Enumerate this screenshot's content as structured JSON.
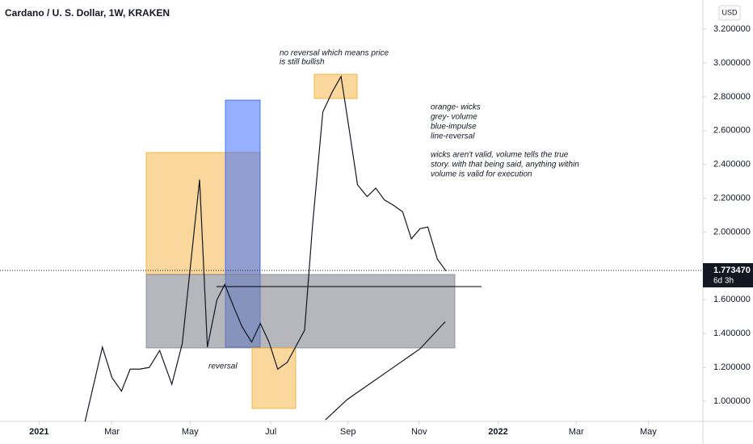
{
  "chart_data": {
    "type": "line",
    "title": "Cardano / U. S. Dollar, 1W, KRAKEN",
    "currency": "USD",
    "xlim": [
      -4.5,
      76.5
    ],
    "xticks": [
      {
        "value": 0,
        "label": "2021"
      },
      {
        "value": 8.4,
        "label": "Mar"
      },
      {
        "value": 17.4,
        "label": "May"
      },
      {
        "value": 26.7,
        "label": "Jul"
      },
      {
        "value": 35.6,
        "label": "Sep"
      },
      {
        "value": 43.8,
        "label": "Nov"
      },
      {
        "value": 52.9,
        "label": "2022"
      },
      {
        "value": 61.9,
        "label": "Mar"
      },
      {
        "value": 70.2,
        "label": "May"
      }
    ],
    "ylim": [
      0.881,
      3.372
    ],
    "yticks": [
      {
        "value": 1.0,
        "label": "1.000000"
      },
      {
        "value": 1.2,
        "label": "1.200000"
      },
      {
        "value": 1.4,
        "label": "1.400000"
      },
      {
        "value": 1.6,
        "label": "1.600000"
      },
      {
        "value": 2.0,
        "label": "2.000000"
      },
      {
        "value": 2.2,
        "label": "2.200000"
      },
      {
        "value": 2.4,
        "label": "2.400000"
      },
      {
        "value": 2.6,
        "label": "2.600000"
      },
      {
        "value": 2.8,
        "label": "2.800000"
      },
      {
        "value": 3.0,
        "label": "3.000000"
      },
      {
        "value": 3.2,
        "label": "3.200000"
      }
    ],
    "last_price": {
      "value": 1.77347,
      "label": "1.773470"
    },
    "countdown": "6d 3h",
    "series": [
      {
        "color": "#131722",
        "x": [
          5.3,
          7.3,
          8.4,
          9.5,
          10.5,
          11.6,
          12.7,
          13.9,
          15.3,
          16.5,
          18.5,
          19.4,
          20.5,
          21.4,
          22.5,
          23.4,
          24.5,
          25.5,
          26.5,
          27.5,
          28.6,
          30.6,
          31.5,
          32.7,
          33.8,
          34.8,
          35.7,
          36.7,
          37.8,
          38.8,
          39.8,
          40.8,
          41.9,
          42.9,
          43.9,
          44.8,
          45.9,
          46.9
        ],
        "values": [
          0.88,
          1.32,
          1.14,
          1.06,
          1.19,
          1.19,
          1.2,
          1.3,
          1.1,
          1.34,
          2.31,
          1.32,
          1.6,
          1.69,
          1.55,
          1.44,
          1.35,
          1.46,
          1.35,
          1.19,
          1.23,
          1.42,
          2.03,
          2.71,
          2.83,
          2.92,
          2.62,
          2.28,
          2.21,
          2.26,
          2.19,
          2.16,
          2.12,
          1.96,
          2.02,
          2.03,
          1.84,
          1.77
        ]
      },
      {
        "color": "#131722",
        "x": [
          33.0,
          35.5,
          38.3,
          41.1,
          43.9,
          46.8
        ],
        "values": [
          0.89,
          1.01,
          1.11,
          1.21,
          1.31,
          1.47
        ]
      }
    ],
    "annotations": [
      "no reversal which means price",
      "is still bullish",
      "orange- wicks",
      "grey- volume",
      "blue-impulse",
      "line-reversal",
      "wicks aren't valid, volume tells the true",
      "story. with that being said, anything within",
      "volume is valid for execution",
      "reversal"
    ]
  }
}
